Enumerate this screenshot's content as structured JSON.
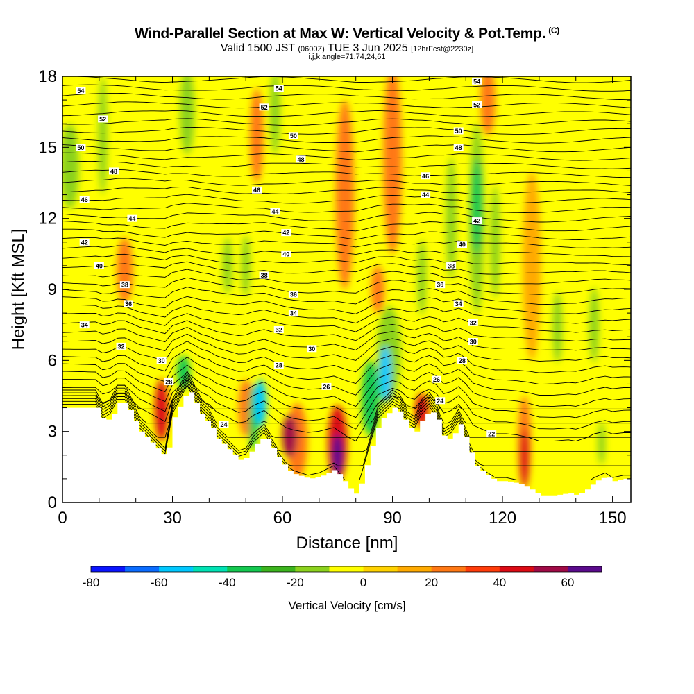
{
  "chart_data": {
    "type": "heatmap",
    "title": "Wind-Parallel Section at Max W: Vertical Velocity & Pot.Temp.",
    "copyright_mark": "(C)",
    "subtitle": {
      "valid": "Valid 1500 JST",
      "utc": "(0600Z)",
      "date": "TUE 3 Jun 2025",
      "forecast": "[12hrFcst@2230z]"
    },
    "params": "i,j,k,angle=71,74,24,61",
    "xlabel": "Distance [nm]",
    "ylabel": "Height [Kft MSL]",
    "xlim": [
      0,
      155
    ],
    "ylim": [
      0,
      18
    ],
    "xticks": [
      0,
      30,
      60,
      90,
      120,
      150
    ],
    "yticks": [
      0,
      3,
      6,
      9,
      12,
      15,
      18
    ],
    "colorbar": {
      "label": "Vertical Velocity [cm/s]",
      "min": -80,
      "max": 70,
      "step": 10,
      "tick_values": [
        -80,
        -60,
        -40,
        -20,
        0,
        20,
        40,
        60
      ],
      "colors": [
        "#0a14ff",
        "#0a6cff",
        "#00c8ff",
        "#00e2b4",
        "#14c850",
        "#3cb41e",
        "#8cd21e",
        "#ffff00",
        "#ffd200",
        "#ffaa00",
        "#ff7814",
        "#ff3c0a",
        "#dc0a14",
        "#a00a46",
        "#5a0a8c"
      ]
    },
    "terrain_kft": [
      [
        0,
        4.0
      ],
      [
        9,
        4.0
      ],
      [
        11,
        3.4
      ],
      [
        13,
        3.6
      ],
      [
        15,
        4.2
      ],
      [
        17,
        4.2
      ],
      [
        21,
        3.0
      ],
      [
        23,
        2.7
      ],
      [
        26,
        2.2
      ],
      [
        28,
        1.9
      ],
      [
        30,
        3.6
      ],
      [
        32,
        4.2
      ],
      [
        34,
        4.8
      ],
      [
        36,
        4.2
      ],
      [
        38,
        3.6
      ],
      [
        40,
        3.3
      ],
      [
        42,
        2.7
      ],
      [
        44,
        2.4
      ],
      [
        46,
        2.1
      ],
      [
        48,
        1.8
      ],
      [
        50,
        1.9
      ],
      [
        52,
        2.4
      ],
      [
        55,
        2.8
      ],
      [
        57,
        2.3
      ],
      [
        59,
        1.8
      ],
      [
        61,
        1.4
      ],
      [
        63,
        1.2
      ],
      [
        67,
        1.0
      ],
      [
        70,
        1.1
      ],
      [
        74,
        1.4
      ],
      [
        76,
        1.0
      ],
      [
        78,
        0.6
      ],
      [
        80,
        0.3
      ],
      [
        82,
        1.3
      ],
      [
        84,
        2.4
      ],
      [
        86,
        3.4
      ],
      [
        88,
        3.7
      ],
      [
        90,
        4.0
      ],
      [
        92,
        3.8
      ],
      [
        94,
        3.2
      ],
      [
        96,
        3.0
      ],
      [
        98,
        3.6
      ],
      [
        100,
        3.9
      ],
      [
        102,
        3.5
      ],
      [
        104,
        2.6
      ],
      [
        106,
        2.8
      ],
      [
        108,
        3.3
      ],
      [
        110,
        2.6
      ],
      [
        112,
        1.6
      ],
      [
        115,
        1.2
      ],
      [
        118,
        0.9
      ],
      [
        121,
        0.9
      ],
      [
        124,
        0.8
      ],
      [
        127,
        0.6
      ],
      [
        130,
        0.3
      ],
      [
        134,
        0.3
      ],
      [
        138,
        0.4
      ],
      [
        140,
        0.3
      ],
      [
        143,
        0.6
      ],
      [
        145,
        0.9
      ],
      [
        148,
        1.1
      ],
      [
        150,
        0.9
      ],
      [
        153,
        1.0
      ],
      [
        155,
        1.0
      ]
    ],
    "w_cells": [
      {
        "x": 2,
        "y": 14.2,
        "rx": 2.5,
        "ry": 1.8,
        "w": -20
      },
      {
        "x": 11,
        "y": 15.5,
        "rx": 1.2,
        "ry": 2.5,
        "w": -20
      },
      {
        "x": 17,
        "y": 9.8,
        "rx": 2.2,
        "ry": 1.4,
        "w": 20
      },
      {
        "x": 27,
        "y": 3.9,
        "rx": 1.8,
        "ry": 1.3,
        "w": 40
      },
      {
        "x": 33,
        "y": 5.5,
        "rx": 1.8,
        "ry": 0.7,
        "w": -40
      },
      {
        "x": 34,
        "y": 16.5,
        "rx": 2.0,
        "ry": 1.8,
        "w": -20
      },
      {
        "x": 45,
        "y": 10.0,
        "rx": 1.3,
        "ry": 1.2,
        "w": -20
      },
      {
        "x": 50,
        "y": 10.0,
        "rx": 1.2,
        "ry": 1.3,
        "w": -20
      },
      {
        "x": 50,
        "y": 4.0,
        "rx": 2.0,
        "ry": 1.2,
        "w": 20
      },
      {
        "x": 52,
        "y": 3.6,
        "rx": 1.3,
        "ry": 1.4,
        "w": -40
      },
      {
        "x": 54,
        "y": 4.2,
        "rx": 1.6,
        "ry": 1.0,
        "w": -60
      },
      {
        "x": 53,
        "y": 15.5,
        "rx": 1.8,
        "ry": 2.0,
        "w": 20
      },
      {
        "x": 58,
        "y": 16.5,
        "rx": 1.4,
        "ry": 1.8,
        "w": -20
      },
      {
        "x": 62,
        "y": 2.8,
        "rx": 2.0,
        "ry": 0.9,
        "w": 50
      },
      {
        "x": 64,
        "y": 2.6,
        "rx": 2.8,
        "ry": 1.6,
        "w": 20
      },
      {
        "x": 75,
        "y": 2.5,
        "rx": 2.6,
        "ry": 1.6,
        "w": 40
      },
      {
        "x": 75,
        "y": 2.0,
        "rx": 1.5,
        "ry": 0.9,
        "w": 70
      },
      {
        "x": 77,
        "y": 13.0,
        "rx": 2.5,
        "ry": 4.0,
        "w": 20
      },
      {
        "x": 84,
        "y": 4.4,
        "rx": 2.4,
        "ry": 1.6,
        "w": -40
      },
      {
        "x": 88,
        "y": 5.4,
        "rx": 1.6,
        "ry": 1.2,
        "w": -60
      },
      {
        "x": 89,
        "y": 6.3,
        "rx": 3.2,
        "ry": 2.0,
        "w": -20
      },
      {
        "x": 86,
        "y": 9.0,
        "rx": 1.8,
        "ry": 1.0,
        "w": 20
      },
      {
        "x": 90,
        "y": 14.5,
        "rx": 2.5,
        "ry": 4.0,
        "w": 20
      },
      {
        "x": 98,
        "y": 3.9,
        "rx": 1.8,
        "ry": 0.7,
        "w": 40
      },
      {
        "x": 98,
        "y": 9.5,
        "rx": 1.2,
        "ry": 1.6,
        "w": -20
      },
      {
        "x": 106,
        "y": 12.0,
        "rx": 1.4,
        "ry": 2.6,
        "w": -20
      },
      {
        "x": 113,
        "y": 12.5,
        "rx": 1.6,
        "ry": 2.0,
        "w": -40
      },
      {
        "x": 113,
        "y": 12.0,
        "rx": 2.0,
        "ry": 4.0,
        "w": -20
      },
      {
        "x": 118,
        "y": 11.0,
        "rx": 1.3,
        "ry": 2.4,
        "w": -20
      },
      {
        "x": 116,
        "y": 17.0,
        "rx": 2.0,
        "ry": 1.5,
        "w": 20
      },
      {
        "x": 126,
        "y": 1.9,
        "rx": 1.2,
        "ry": 1.2,
        "w": 40
      },
      {
        "x": 126,
        "y": 2.5,
        "rx": 1.8,
        "ry": 2.0,
        "w": 20
      },
      {
        "x": 128,
        "y": 10.0,
        "rx": 2.5,
        "ry": 4.0,
        "w": 10
      },
      {
        "x": 135,
        "y": 7.4,
        "rx": 1.3,
        "ry": 1.5,
        "w": -20
      },
      {
        "x": 145,
        "y": 7.5,
        "rx": 1.3,
        "ry": 1.6,
        "w": -20
      },
      {
        "x": 147,
        "y": 2.5,
        "rx": 1.0,
        "ry": 0.9,
        "w": -20
      }
    ],
    "theta_contour_labels": [
      {
        "x": 5,
        "y": 17.4,
        "text": "54"
      },
      {
        "x": 11,
        "y": 16.2,
        "text": "52"
      },
      {
        "x": 5,
        "y": 15.0,
        "text": "50"
      },
      {
        "x": 14,
        "y": 14.0,
        "text": "48"
      },
      {
        "x": 6,
        "y": 12.8,
        "text": "46"
      },
      {
        "x": 19,
        "y": 12.0,
        "text": "44"
      },
      {
        "x": 6,
        "y": 11.0,
        "text": "42"
      },
      {
        "x": 10,
        "y": 10.0,
        "text": "40"
      },
      {
        "x": 17,
        "y": 9.2,
        "text": "38"
      },
      {
        "x": 18,
        "y": 8.4,
        "text": "36"
      },
      {
        "x": 6,
        "y": 7.5,
        "text": "34"
      },
      {
        "x": 16,
        "y": 6.6,
        "text": "32"
      },
      {
        "x": 27,
        "y": 6.0,
        "text": "30"
      },
      {
        "x": 29,
        "y": 5.1,
        "text": "28"
      },
      {
        "x": 44,
        "y": 3.3,
        "text": "24"
      },
      {
        "x": 59,
        "y": 17.5,
        "text": "54"
      },
      {
        "x": 55,
        "y": 16.7,
        "text": "52"
      },
      {
        "x": 63,
        "y": 15.5,
        "text": "50"
      },
      {
        "x": 65,
        "y": 14.5,
        "text": "48"
      },
      {
        "x": 53,
        "y": 13.2,
        "text": "46"
      },
      {
        "x": 58,
        "y": 12.3,
        "text": "44"
      },
      {
        "x": 61,
        "y": 11.4,
        "text": "42"
      },
      {
        "x": 61,
        "y": 10.5,
        "text": "40"
      },
      {
        "x": 55,
        "y": 9.6,
        "text": "38"
      },
      {
        "x": 63,
        "y": 8.8,
        "text": "36"
      },
      {
        "x": 63,
        "y": 8.0,
        "text": "34"
      },
      {
        "x": 59,
        "y": 7.3,
        "text": "32"
      },
      {
        "x": 68,
        "y": 6.5,
        "text": "30"
      },
      {
        "x": 59,
        "y": 5.8,
        "text": "28"
      },
      {
        "x": 72,
        "y": 4.9,
        "text": "26"
      },
      {
        "x": 113,
        "y": 17.8,
        "text": "54"
      },
      {
        "x": 113,
        "y": 16.8,
        "text": "52"
      },
      {
        "x": 108,
        "y": 15.7,
        "text": "50"
      },
      {
        "x": 108,
        "y": 15.0,
        "text": "48"
      },
      {
        "x": 99,
        "y": 13.8,
        "text": "46"
      },
      {
        "x": 99,
        "y": 13.0,
        "text": "44"
      },
      {
        "x": 113,
        "y": 11.9,
        "text": "42"
      },
      {
        "x": 109,
        "y": 10.9,
        "text": "40"
      },
      {
        "x": 106,
        "y": 10.0,
        "text": "38"
      },
      {
        "x": 103,
        "y": 9.2,
        "text": "36"
      },
      {
        "x": 108,
        "y": 8.4,
        "text": "34"
      },
      {
        "x": 112,
        "y": 7.6,
        "text": "32"
      },
      {
        "x": 112,
        "y": 6.8,
        "text": "30"
      },
      {
        "x": 109,
        "y": 6.0,
        "text": "28"
      },
      {
        "x": 102,
        "y": 5.2,
        "text": "26"
      },
      {
        "x": 103,
        "y": 4.3,
        "text": "24"
      },
      {
        "x": 117,
        "y": 2.9,
        "text": "22"
      }
    ]
  }
}
